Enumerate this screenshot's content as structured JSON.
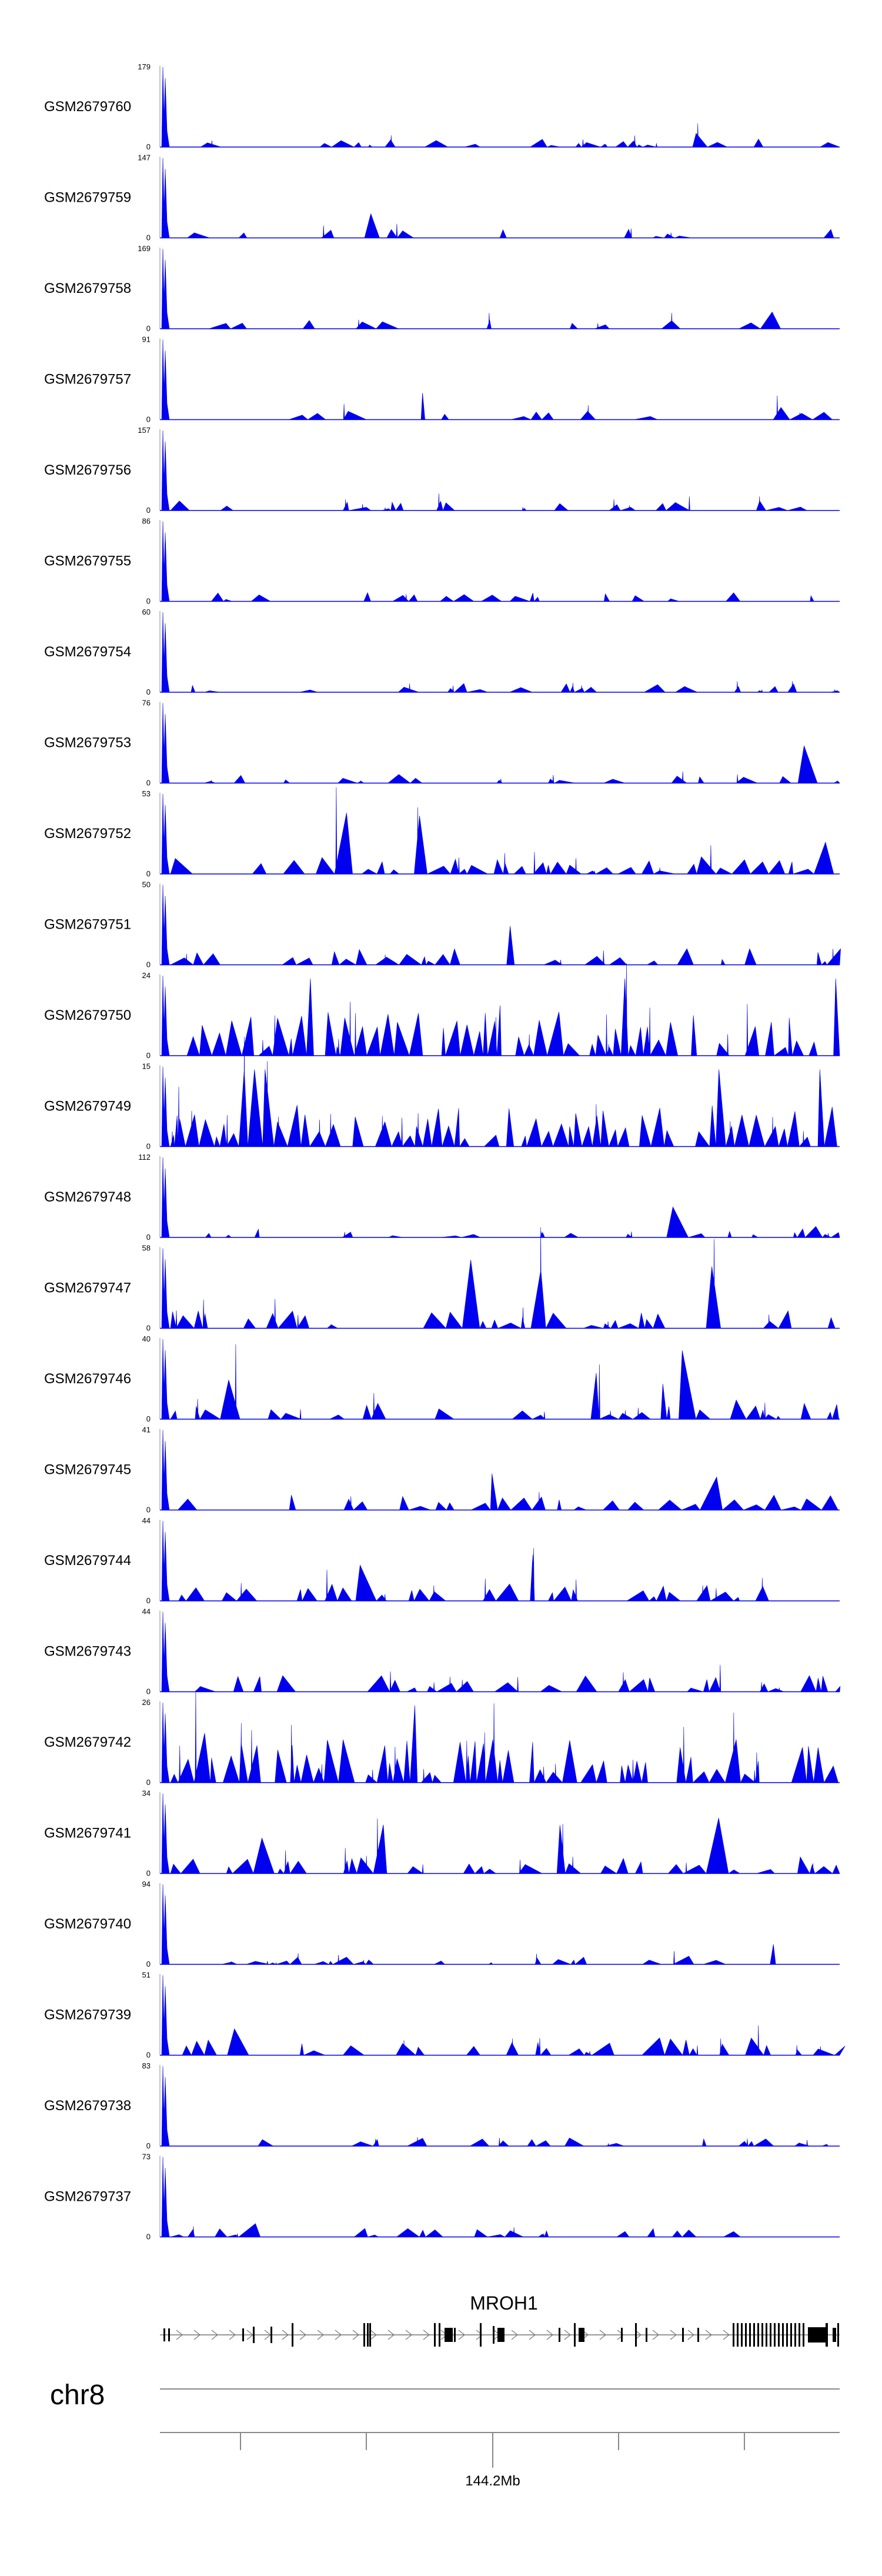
{
  "chart_data": {
    "type": "area",
    "description_free": true,
    "track_color": "#0000ee",
    "tracks": [
      {
        "name": "GSM2679760",
        "ymax": 179,
        "ymin": 0
      },
      {
        "name": "GSM2679759",
        "ymax": 147,
        "ymin": 0
      },
      {
        "name": "GSM2679758",
        "ymax": 169,
        "ymin": 0
      },
      {
        "name": "GSM2679757",
        "ymax": 91,
        "ymin": 0
      },
      {
        "name": "GSM2679756",
        "ymax": 157,
        "ymin": 0
      },
      {
        "name": "GSM2679755",
        "ymax": 86,
        "ymin": 0
      },
      {
        "name": "GSM2679754",
        "ymax": 60,
        "ymin": 0
      },
      {
        "name": "GSM2679753",
        "ymax": 76,
        "ymin": 0
      },
      {
        "name": "GSM2679752",
        "ymax": 53,
        "ymin": 0
      },
      {
        "name": "GSM2679751",
        "ymax": 50,
        "ymin": 0
      },
      {
        "name": "GSM2679750",
        "ymax": 24,
        "ymin": 0
      },
      {
        "name": "GSM2679749",
        "ymax": 15,
        "ymin": 0
      },
      {
        "name": "GSM2679748",
        "ymax": 112,
        "ymin": 0
      },
      {
        "name": "GSM2679747",
        "ymax": 58,
        "ymin": 0
      },
      {
        "name": "GSM2679746",
        "ymax": 40,
        "ymin": 0
      },
      {
        "name": "GSM2679745",
        "ymax": 41,
        "ymin": 0
      },
      {
        "name": "GSM2679744",
        "ymax": 44,
        "ymin": 0
      },
      {
        "name": "GSM2679743",
        "ymax": 44,
        "ymin": 0
      },
      {
        "name": "GSM2679742",
        "ymax": 26,
        "ymin": 0
      },
      {
        "name": "GSM2679741",
        "ymax": 34,
        "ymin": 0
      },
      {
        "name": "GSM2679740",
        "ymax": 94,
        "ymin": 0
      },
      {
        "name": "GSM2679739",
        "ymax": 51,
        "ymin": 0
      },
      {
        "name": "GSM2679738",
        "ymax": 83,
        "ymin": 0
      },
      {
        "name": "GSM2679737",
        "ymax": 73,
        "ymin": 0
      }
    ],
    "gene": {
      "name": "MROH1",
      "strand": "+"
    },
    "chromosome": "chr8",
    "axis": {
      "label": "144.2Mb"
    }
  }
}
